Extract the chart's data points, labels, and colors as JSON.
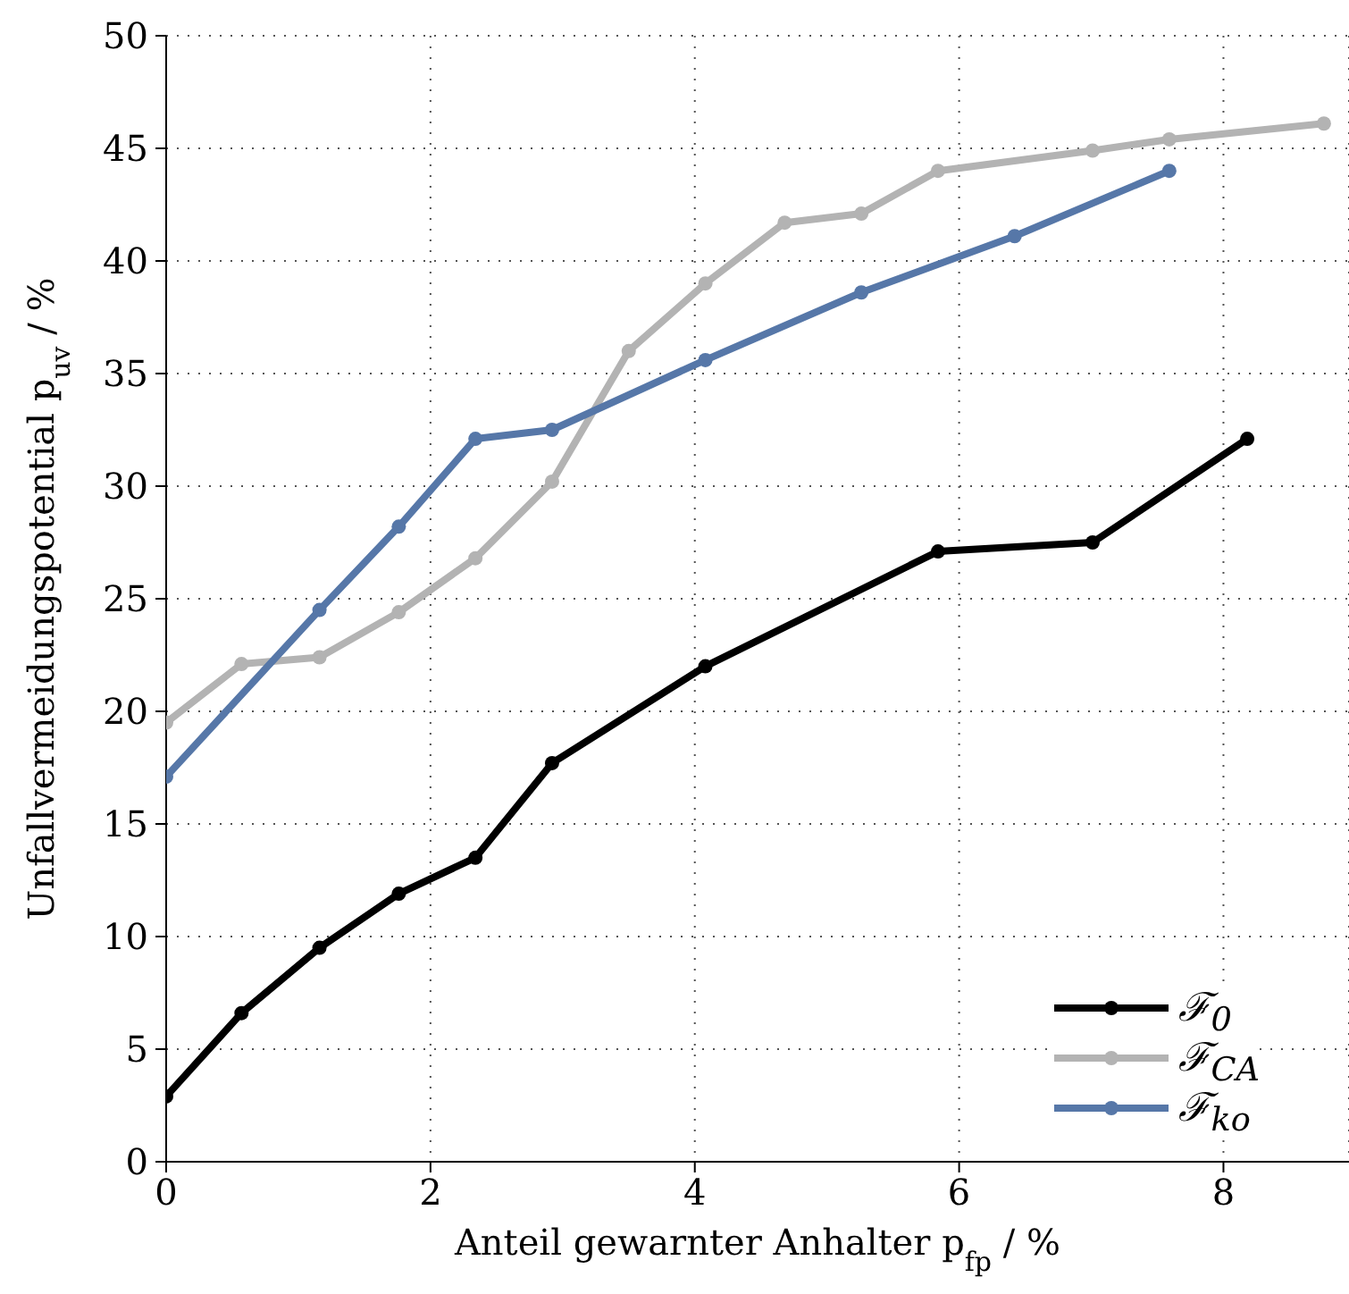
{
  "chart_data": {
    "type": "line",
    "xlabel": "Anteil gewarnter Anhalter p$_{fp}$ / %",
    "ylabel": "Unfallvermeidungspotential p$_{uv}$ / %",
    "xlim": [
      0,
      8.95
    ],
    "xticks": [
      0,
      2,
      4,
      6,
      8
    ],
    "ylim": [
      0,
      50
    ],
    "yticks": [
      0,
      5,
      10,
      15,
      20,
      25,
      30,
      35,
      40,
      45,
      50
    ],
    "grid": true,
    "legend": "bottom right",
    "marker": "circle",
    "line_style": "solid",
    "series": [
      {
        "name": "ℱ$_{0}$",
        "color": "#000000",
        "x": [
          0,
          0.57,
          1.16,
          1.76,
          2.34,
          2.92,
          4.08,
          5.84,
          7.01,
          8.18
        ],
        "values": [
          2.9,
          6.6,
          9.5,
          11.9,
          13.5,
          17.7,
          22.0,
          27.1,
          27.5,
          32.1
        ]
      },
      {
        "name": "ℱ$_{CA}$",
        "color": "#b3b3b3",
        "x": [
          0,
          0.57,
          1.16,
          1.76,
          2.34,
          2.92,
          3.5,
          4.08,
          4.68,
          5.26,
          5.84,
          7.01,
          7.59,
          8.76
        ],
        "values": [
          19.5,
          22.1,
          22.4,
          24.4,
          26.8,
          30.2,
          36.0,
          39.0,
          41.7,
          42.1,
          44.0,
          44.9,
          45.4,
          46.1
        ]
      },
      {
        "name": "ℱ$_{ko}$",
        "color": "#5677a8",
        "x": [
          0,
          1.16,
          1.76,
          2.34,
          2.92,
          4.08,
          5.26,
          6.42,
          7.59
        ],
        "values": [
          17.1,
          24.5,
          28.2,
          32.1,
          32.5,
          35.6,
          38.6,
          41.1,
          44.0
        ]
      }
    ]
  }
}
